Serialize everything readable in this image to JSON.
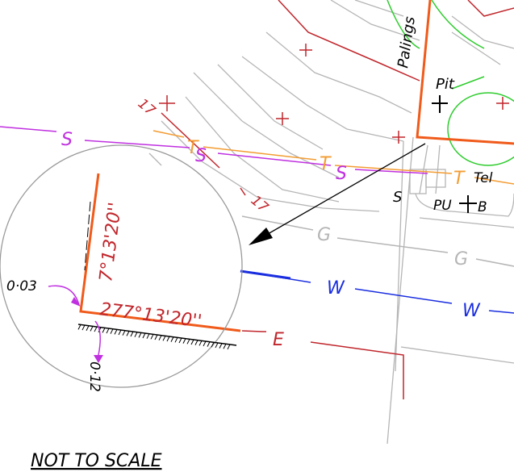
{
  "labels": {
    "street": "Palings",
    "pit": "Pit",
    "telstra": "Tel",
    "pu": "PU",
    "b": "B"
  },
  "services": {
    "sewer": "S",
    "telecom": "T",
    "gas": "G",
    "water": "W",
    "electric": "E"
  },
  "contours": [
    "17",
    "17"
  ],
  "bearings": {
    "boundary": "277°13'20''",
    "side": "7°13'20''"
  },
  "offsets": {
    "x": "0·03",
    "y": "0·12"
  },
  "note": "NOT TO SCALE"
}
